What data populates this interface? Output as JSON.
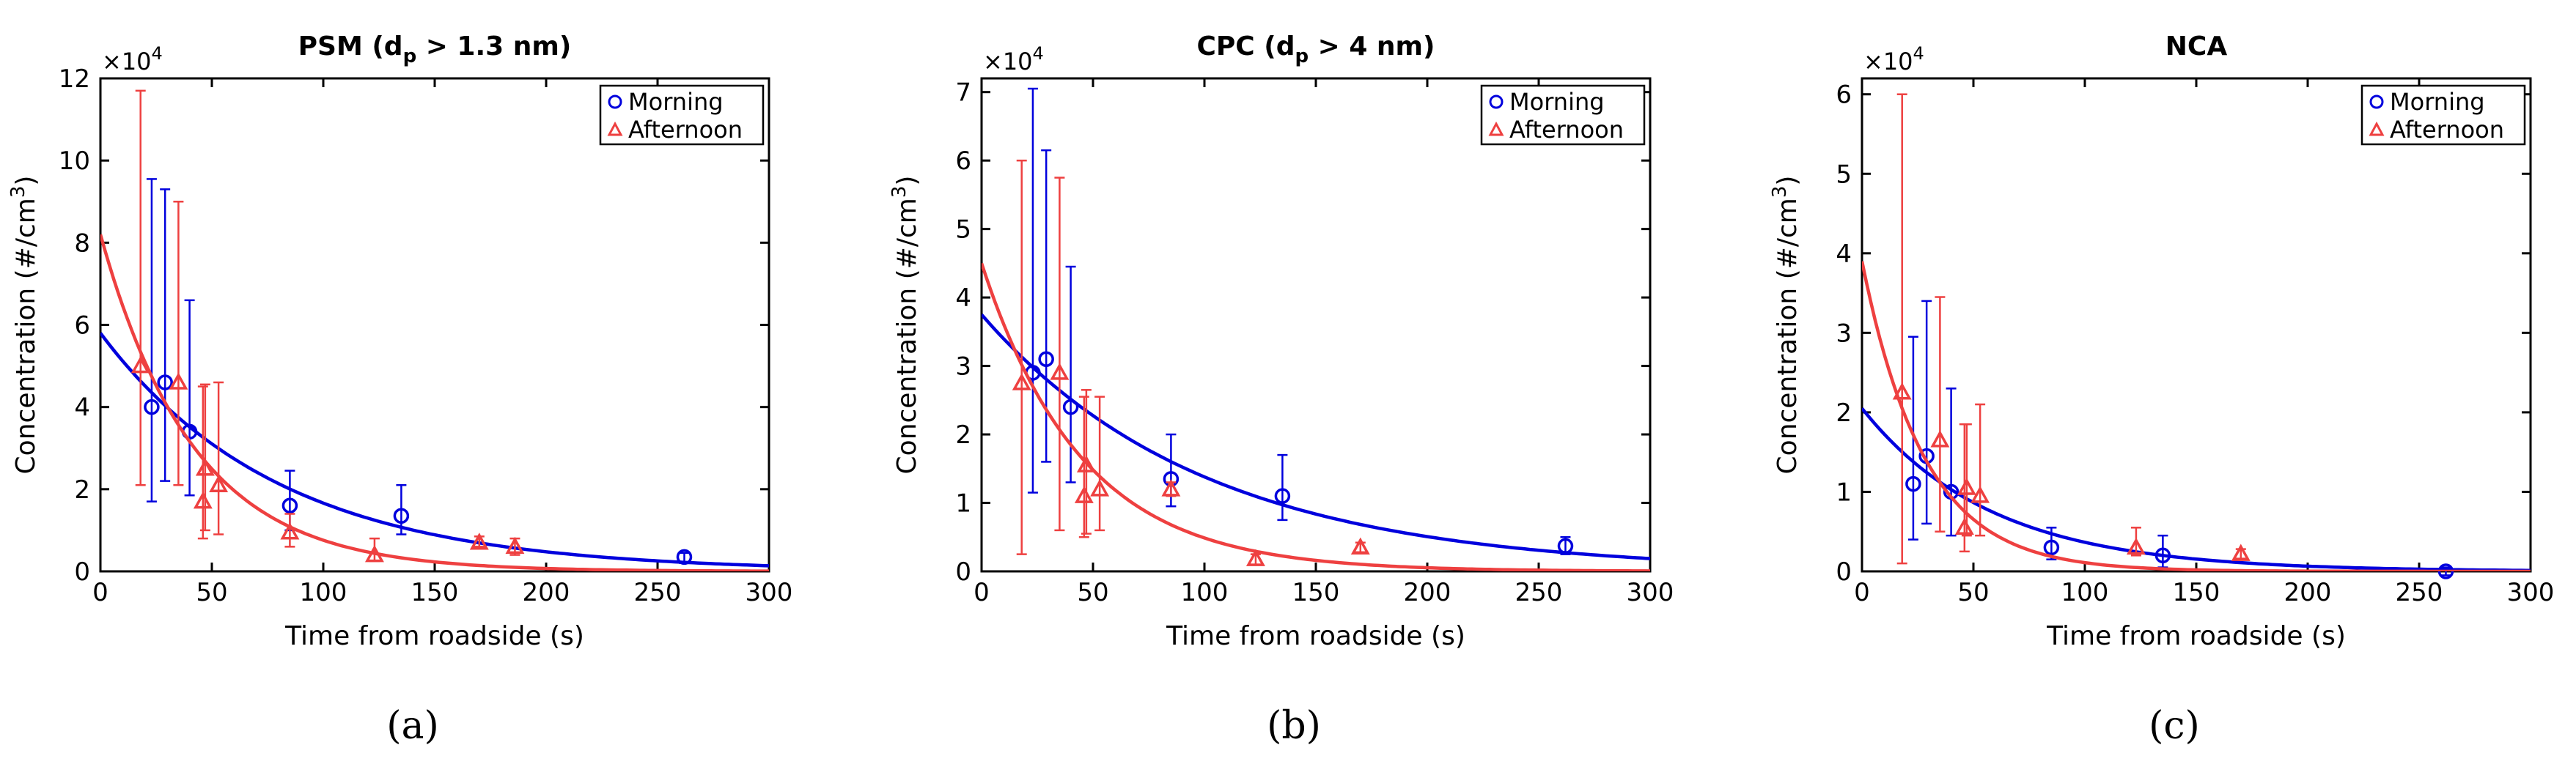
{
  "chart_data": [
    {
      "type": "scatter",
      "panel_label": "(a)",
      "title": "PSM (d_p > 1.3 nm)",
      "title_main": "PSM (d",
      "title_sub": "p",
      "title_rest": " > 1.3 nm)",
      "xlabel": "Time from roadside (s)",
      "ylabel_main": "Concentration (#/cm",
      "ylabel_sup": "3",
      "ylabel_end": ")",
      "multiplier_base": "×10",
      "multiplier_exp": "4",
      "xlim": [
        0,
        300
      ],
      "ylim": [
        0,
        12
      ],
      "xticks": [
        0,
        50,
        100,
        150,
        200,
        250,
        300
      ],
      "yticks": [
        0,
        2,
        4,
        6,
        8,
        10,
        12
      ],
      "legend_position": "top-right",
      "series": [
        {
          "name": "Morning",
          "marker": "circle",
          "color": "#0000dd",
          "x": [
            23,
            29,
            40,
            85,
            135,
            262
          ],
          "y": [
            4.0,
            4.6,
            3.4,
            1.6,
            1.35,
            0.35
          ],
          "err_low": [
            1.7,
            2.2,
            1.85,
            1.0,
            0.9,
            0.2
          ],
          "err_high": [
            9.55,
            9.3,
            6.6,
            2.45,
            2.1,
            0.45
          ],
          "fit": {
            "a": 5.8,
            "tau": 80
          }
        },
        {
          "name": "Afternoon",
          "marker": "triangle",
          "color": "#ee4040",
          "x": [
            18,
            35,
            46,
            47,
            53,
            85,
            123,
            170,
            186
          ],
          "y": [
            5.0,
            4.6,
            1.7,
            2.5,
            2.1,
            0.95,
            0.4,
            0.7,
            0.6
          ],
          "err_low": [
            2.1,
            2.1,
            0.8,
            1.0,
            0.9,
            0.6,
            0.25,
            0.6,
            0.4
          ],
          "err_high": [
            11.7,
            9.0,
            4.5,
            4.55,
            4.6,
            1.4,
            0.8,
            0.85,
            0.8
          ],
          "fit": {
            "a": 8.2,
            "tau": 42
          }
        }
      ]
    },
    {
      "type": "scatter",
      "panel_label": "(b)",
      "title": "CPC (d_p > 4 nm)",
      "title_main": "CPC (d",
      "title_sub": "p",
      "title_rest": " > 4 nm)",
      "xlabel": "Time from roadside (s)",
      "ylabel_main": "Concentration (#/cm",
      "ylabel_sup": "3",
      "ylabel_end": ")",
      "multiplier_base": "×10",
      "multiplier_exp": "4",
      "xlim": [
        0,
        300
      ],
      "ylim": [
        0,
        7.2
      ],
      "xticks": [
        0,
        50,
        100,
        150,
        200,
        250,
        300
      ],
      "yticks": [
        0,
        1,
        2,
        3,
        4,
        5,
        6,
        7
      ],
      "legend_position": "top-right",
      "series": [
        {
          "name": "Morning",
          "marker": "circle",
          "color": "#0000dd",
          "x": [
            23,
            29,
            40,
            85,
            135,
            262
          ],
          "y": [
            2.9,
            3.1,
            2.4,
            1.35,
            1.1,
            0.37
          ],
          "err_low": [
            1.15,
            1.6,
            1.3,
            0.95,
            0.75,
            0.25
          ],
          "err_high": [
            7.05,
            6.15,
            4.45,
            2.0,
            1.7,
            0.5
          ],
          "fit": {
            "a": 3.75,
            "tau": 100
          }
        },
        {
          "name": "Afternoon",
          "marker": "triangle",
          "color": "#ee4040",
          "x": [
            18,
            35,
            46,
            47,
            53,
            85,
            123,
            170
          ],
          "y": [
            2.75,
            2.9,
            1.1,
            1.55,
            1.2,
            1.2,
            0.18,
            0.35
          ],
          "err_low": [
            0.25,
            0.6,
            0.5,
            0.55,
            0.6,
            1.1,
            0.1,
            0.28
          ],
          "err_high": [
            6.0,
            5.75,
            2.55,
            2.65,
            2.55,
            1.3,
            0.25,
            0.42
          ],
          "fit": {
            "a": 4.5,
            "tau": 45
          }
        }
      ]
    },
    {
      "type": "scatter",
      "panel_label": "(c)",
      "title": "NCA",
      "title_main": "NCA",
      "title_sub": "",
      "title_rest": "",
      "xlabel": "Time from roadside (s)",
      "ylabel_main": "Concentration (#/cm",
      "ylabel_sup": "3",
      "ylabel_end": ")",
      "multiplier_base": "×10",
      "multiplier_exp": "4",
      "xlim": [
        0,
        300
      ],
      "ylim": [
        0,
        6.2
      ],
      "xticks": [
        0,
        50,
        100,
        150,
        200,
        250,
        300
      ],
      "yticks": [
        0,
        1,
        2,
        3,
        4,
        5,
        6
      ],
      "legend_position": "top-right",
      "series": [
        {
          "name": "Morning",
          "marker": "circle",
          "color": "#0000dd",
          "x": [
            23,
            29,
            40,
            85,
            135,
            262
          ],
          "y": [
            1.1,
            1.45,
            1.0,
            0.3,
            0.2,
            0.0
          ],
          "err_low": [
            0.4,
            0.6,
            0.45,
            0.15,
            0.05,
            -0.05
          ],
          "err_high": [
            2.95,
            3.4,
            2.3,
            0.55,
            0.45,
            0.05
          ],
          "fit": {
            "a": 2.05,
            "tau": 58
          }
        },
        {
          "name": "Afternoon",
          "marker": "triangle",
          "color": "#ee4040",
          "x": [
            18,
            35,
            46,
            47,
            53,
            123,
            170
          ],
          "y": [
            2.25,
            1.65,
            0.55,
            1.05,
            0.95,
            0.3,
            0.22
          ],
          "err_low": [
            0.1,
            0.5,
            0.25,
            0.45,
            0.45,
            0.2,
            0.16
          ],
          "err_high": [
            6.0,
            3.45,
            1.85,
            1.85,
            2.1,
            0.55,
            0.28
          ],
          "fit": {
            "a": 3.9,
            "tau": 28
          }
        }
      ]
    }
  ]
}
